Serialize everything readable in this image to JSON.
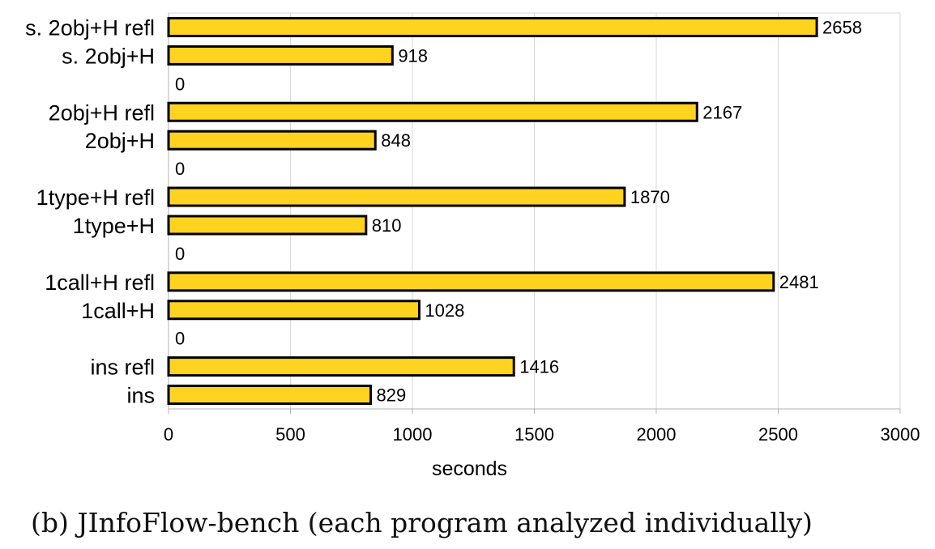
{
  "chart_data": {
    "type": "bar",
    "orientation": "horizontal",
    "categories": [
      "s. 2obj+H refl",
      "s. 2obj+H",
      "",
      "2obj+H refl",
      "2obj+H",
      "",
      "1type+H refl",
      "1type+H",
      "",
      "1call+H refl",
      "1call+H",
      "",
      "ins refl",
      "ins"
    ],
    "values": [
      2658,
      918,
      0,
      2167,
      848,
      0,
      1870,
      810,
      0,
      2481,
      1028,
      0,
      1416,
      829
    ],
    "data_labels": [
      "2658",
      "918",
      "0",
      "2167",
      "848",
      "0",
      "1870",
      "810",
      "0",
      "2481",
      "1028",
      "0",
      "1416",
      "829"
    ],
    "xlabel": "seconds",
    "ylabel": "",
    "xlim": [
      0,
      3000
    ],
    "x_ticks": [
      0,
      500,
      1000,
      1500,
      2000,
      2500,
      3000
    ],
    "x_tick_labels": [
      "0",
      "500",
      "1000",
      "1500",
      "2000",
      "2500",
      "3000"
    ],
    "grid": "vertical",
    "legend": "none",
    "bar_color": "#ffd320",
    "bar_edge_color": "#000000"
  },
  "caption": "(b) JInfoFlow-bench (each program analyzed individually)"
}
